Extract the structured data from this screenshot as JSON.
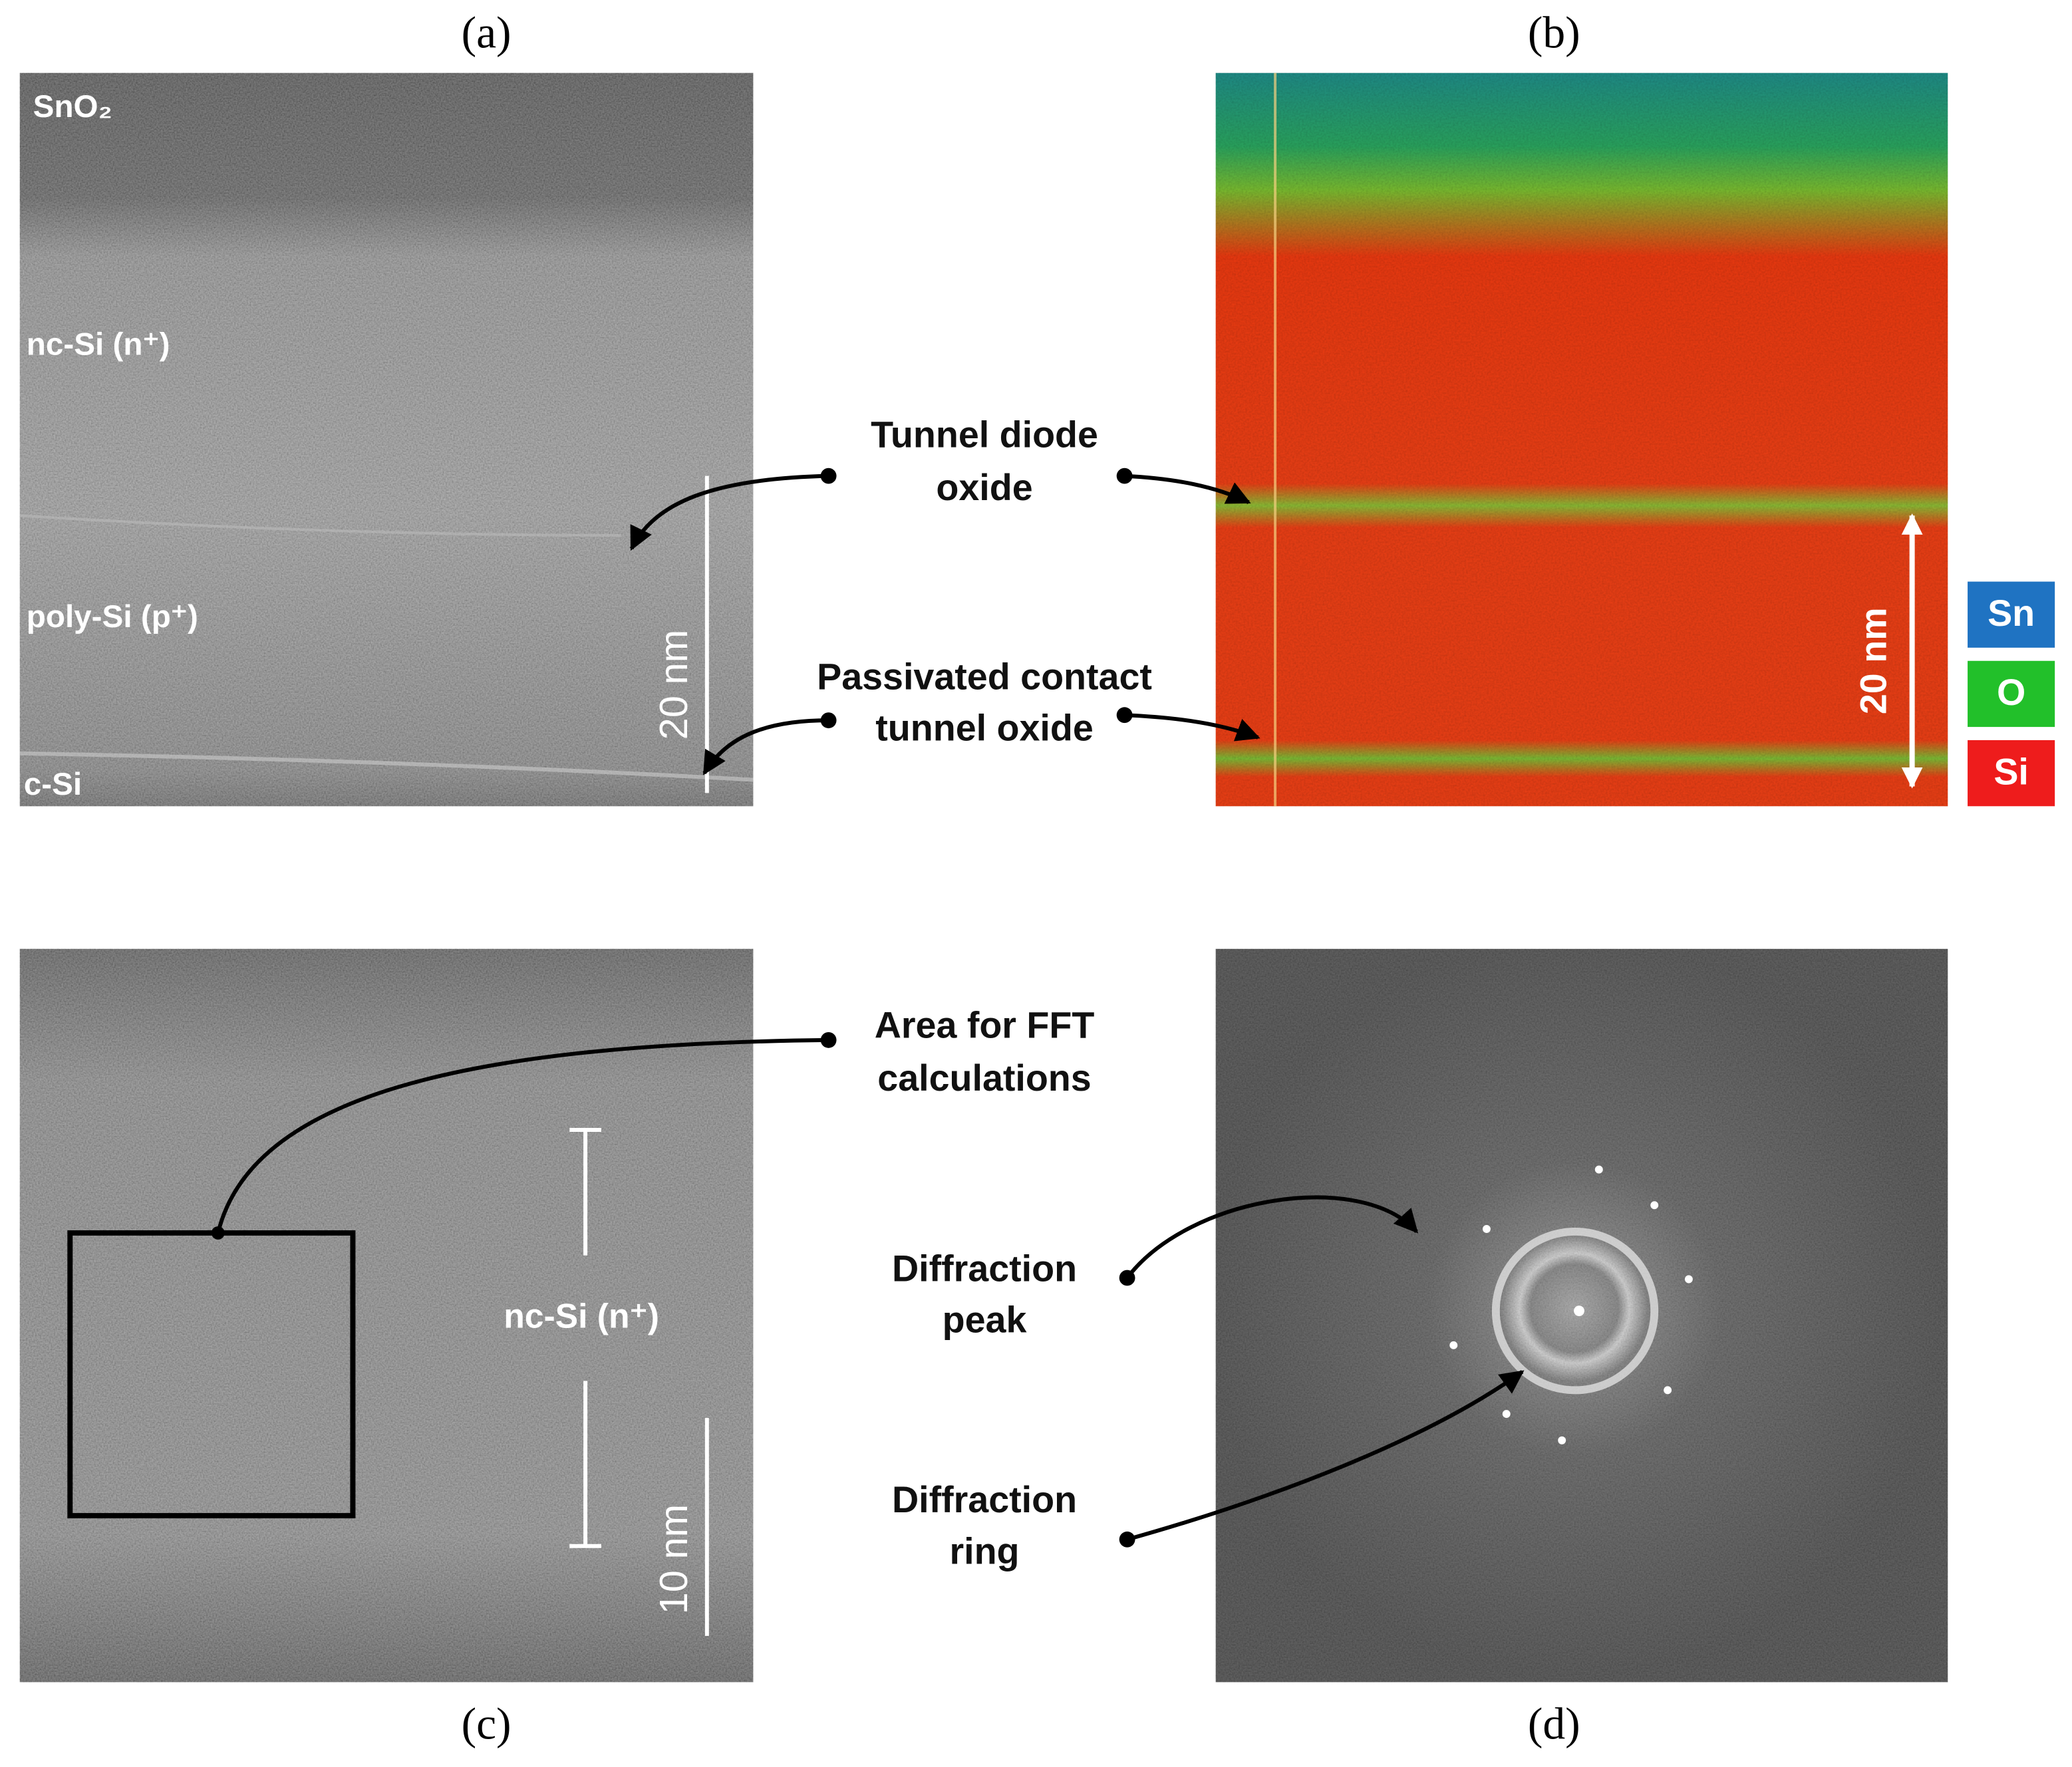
{
  "panels": [
    {
      "label": "(a)",
      "annotations": [
        "SnO₂",
        "nc-Si (n⁺)",
        "poly-Si (p⁺)",
        "c-Si"
      ],
      "scale_bar": "20 nm"
    },
    {
      "label": "(b)",
      "scale_bar": "20 nm",
      "legend": [
        "Sn",
        "O",
        "Si"
      ]
    },
    {
      "label": "(c)",
      "annotations": [
        "nc-Si (n⁺)"
      ],
      "scale_bar": "10 nm"
    },
    {
      "label": "(d)"
    }
  ],
  "callouts": [
    {
      "lines": [
        "Tunnel diode",
        "oxide"
      ]
    },
    {
      "lines": [
        "Passivated contact",
        "tunnel oxide"
      ]
    },
    {
      "lines": [
        "Area for FFT",
        "calculations"
      ]
    },
    {
      "lines": [
        "Diffraction",
        "peak"
      ]
    },
    {
      "lines": [
        "Diffraction",
        "ring"
      ]
    }
  ]
}
